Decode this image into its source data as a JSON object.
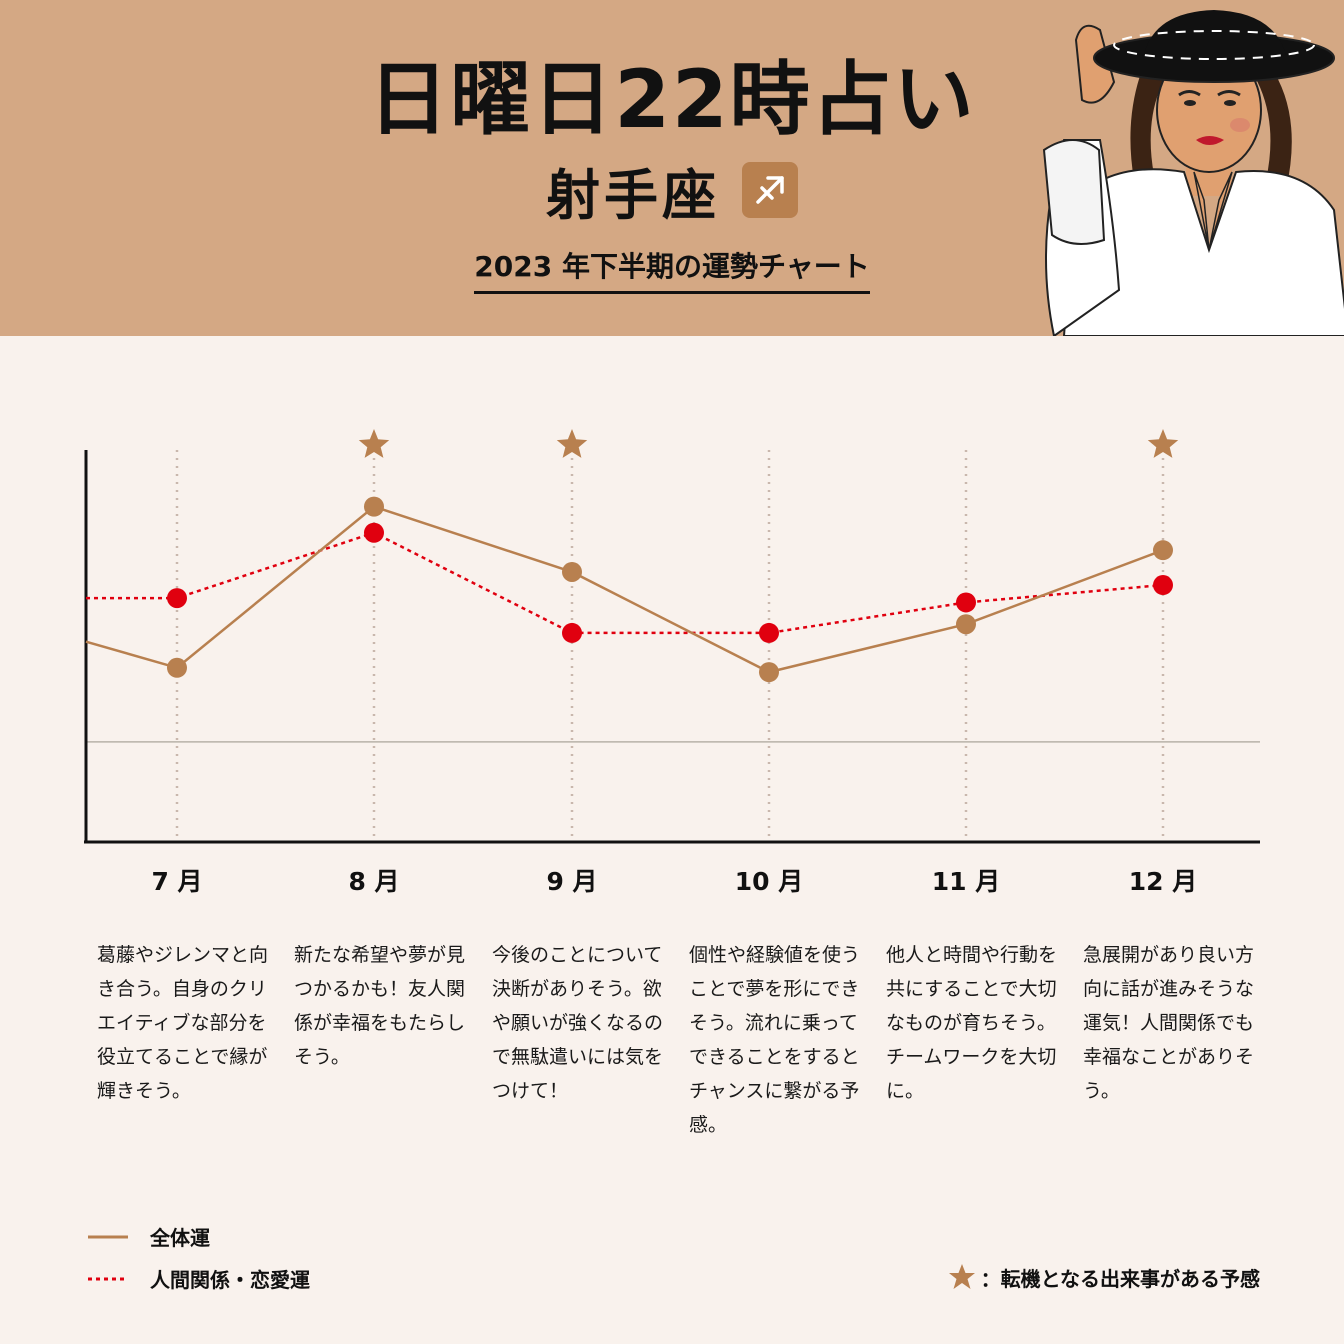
{
  "header": {
    "title": "日曜日22時占い",
    "sign": "射手座",
    "sign_symbol": "♐",
    "subtitle": "2023 年下半期の運勢チャート",
    "bg_color": "#d4a884"
  },
  "chart_data": {
    "type": "line",
    "categories": [
      "7 月",
      "8 月",
      "9 月",
      "10 月",
      "11 月",
      "12 月"
    ],
    "series": [
      {
        "name": "全体運",
        "style": "solid",
        "color": "#b8804f",
        "values": [
          4.0,
          7.7,
          6.2,
          3.9,
          5.0,
          6.7
        ],
        "start_value": 4.6
      },
      {
        "name": "人間関係・恋愛運",
        "style": "dotted",
        "color": "#e0000f",
        "values": [
          5.6,
          7.1,
          4.8,
          4.8,
          5.5,
          5.9
        ],
        "start_value": 5.6
      }
    ],
    "ylim": [
      0,
      9
    ],
    "baseline": 2.3,
    "turning_points": [
      "8 月",
      "9 月",
      "12 月"
    ],
    "grid": "vertical-dotted"
  },
  "months": [
    {
      "label": "7 月",
      "text": "葛藤やジレンマと向き合う。自身のクリエイティブな部分を役立てることで縁が輝きそう。"
    },
    {
      "label": "8 月",
      "text": "新たな希望や夢が見つかるかも！友人関係が幸福をもたらしそう。"
    },
    {
      "label": "9 月",
      "text": "今後のことについて決断がありそう。欲や願いが強くなるので無駄遣いには気をつけて！"
    },
    {
      "label": "10 月",
      "text": "個性や経験値を使うことで夢を形にできそう。流れに乗ってできることをするとチャンスに繋がる予感。"
    },
    {
      "label": "11 月",
      "text": "他人と時間や行動を共にすることで大切なものが育ちそう。チームワークを大切に。"
    },
    {
      "label": "12 月",
      "text": "急展開があり良い方向に話が進みそうな運気！人間関係でも幸福なことがありそう。"
    }
  ],
  "legend": {
    "overall": "全体運",
    "relationship": "人間関係・恋愛運",
    "turning_note": "：転機となる出来事がある予感"
  }
}
